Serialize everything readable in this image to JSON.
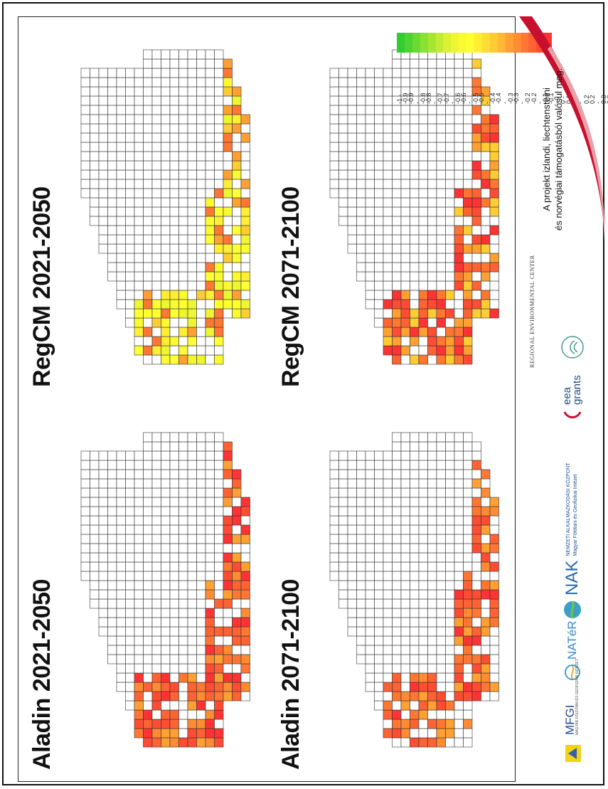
{
  "maps": [
    {
      "title": "Aladin 2021-2050",
      "scenario": "aladin"
    },
    {
      "title": "Aladin 2071-2100",
      "scenario": "aladin"
    },
    {
      "title": "RegCM 2021-2050",
      "scenario": "regcm1"
    },
    {
      "title": "RegCM 2071-2100",
      "scenario": "regcm2"
    }
  ],
  "legend": {
    "labels": [
      "-1 - -0.9",
      "-0.9 - -0.8",
      "-0.8 - -0.7",
      "-0.7 - -0.6",
      "-0.6 - -0.5",
      "-0.5 - -0.4",
      "-0.4 - -0.3",
      "-0.3 - -0.2",
      "-0.2 - -0.1",
      "-0.1 - 0",
      "0 - 0.1",
      "0.1 - 0.2",
      "0.2 - 0.3",
      "0.3 - 0.4",
      "0.4 - 0.5",
      "0.5 - 0.6",
      "0.6 - 0.7",
      "0.7 - 0.8",
      "0.8 - 0.9",
      "0.9 - 1"
    ],
    "colors": [
      "#33cc33",
      "#4fd333",
      "#6cd933",
      "#8ae033",
      "#a6e633",
      "#c2ec33",
      "#dbf133",
      "#eef633",
      "#fafa33",
      "#ffff33",
      "#ffee33",
      "#ffdd33",
      "#ffcc33",
      "#ffb833",
      "#ffa033",
      "#ff8c33",
      "#ff7733",
      "#ff6233",
      "#ff4c33",
      "#ff3333"
    ]
  },
  "sidebar": {
    "note_line1": "A projekt izlandi, liechtensteini",
    "note_line2": "és norvégiai támogatásból valósul meg.",
    "rec_name": "REGIONAL ENVIRONMENTAL CENTER",
    "eea_top": "eea",
    "eea_bottom": "grants",
    "nak_abbr": "NAK",
    "nak_line1": "NEMZETI ALKALMAZKODÁSI KÖZPONT",
    "nak_line2": "Magyar Földtani és Geofizikai Intézet",
    "nater": "NATéR",
    "mfgi": "MFGI",
    "mfgi_sub": "MAGYAR FÖLDTANI ÉS GEOFIZIKAI INTÉZET",
    "brand_red": "#c8102e"
  }
}
